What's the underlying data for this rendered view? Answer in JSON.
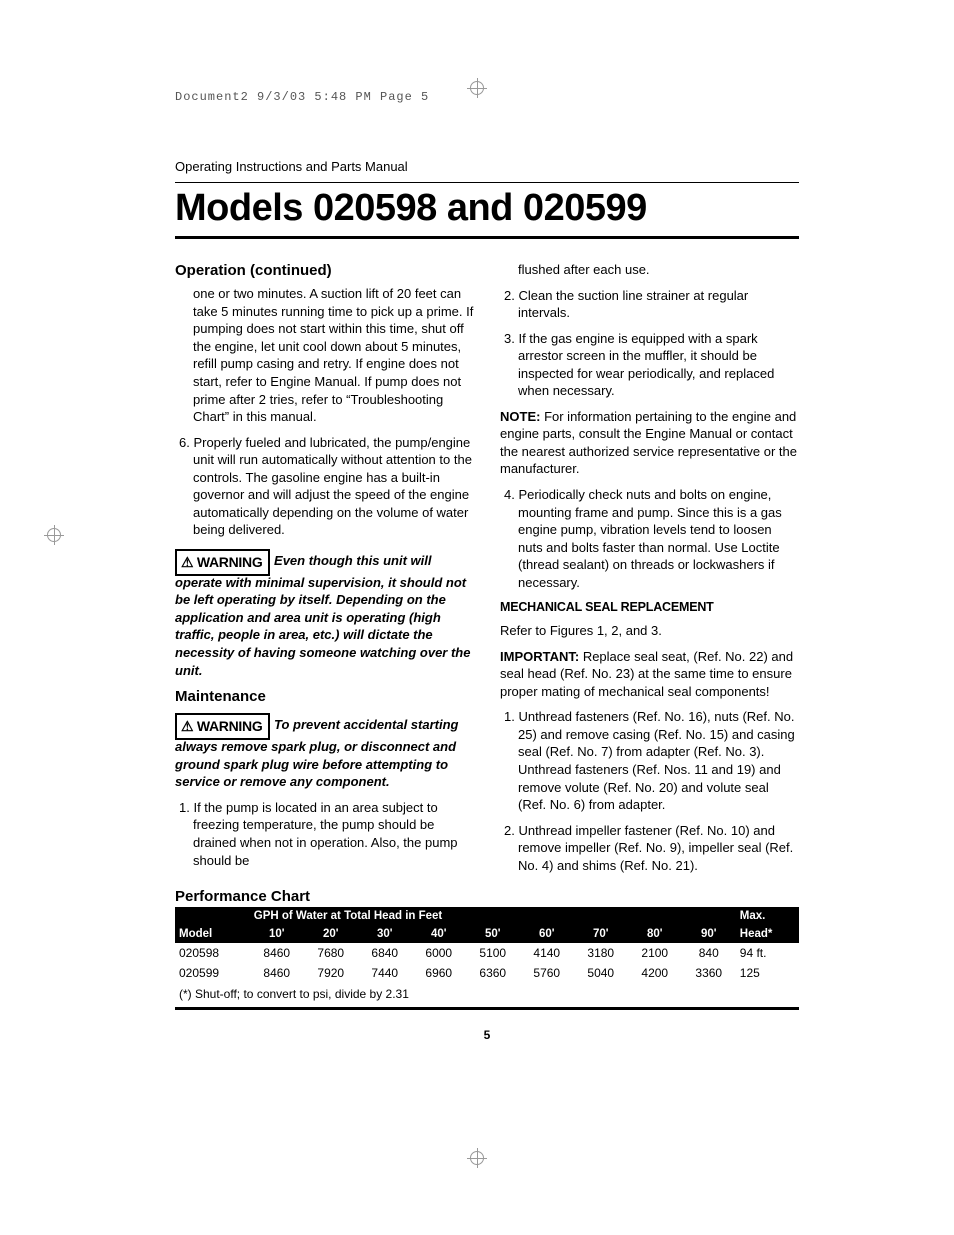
{
  "slug": "Document2  9/3/03  5:48 PM  Page 5",
  "running_head": "Operating Instructions and Parts Manual",
  "title": "Models 020598 and 020599",
  "left": {
    "sec1_head": "Operation (continued)",
    "p1": "one or two minutes. A suction lift of 20 feet can take 5 minutes running time to pick up a prime. If pumping does not start within this time, shut off the engine, let unit cool down about 5 minutes, refill pump casing and retry. If engine does not start, refer to Engine Manual. If pump does not prime after 2 tries, refer to “Troubleshooting Chart” in this manual.",
    "p2": "6. Properly fueled and lubricated, the pump/engine unit will run automatically without attention to the controls. The gasoline engine has a built-in governor and will adjust the speed of the engine automatically depending on the volume of water being delivered.",
    "warn1_label": "WARNING",
    "warn1_text": "Even though this unit will operate with minimal supervision, it should not be left operating by itself. Depending on the application and area unit is operating (high traffic, people in area, etc.) will dictate the necessity of having someone watching over the unit.",
    "sec2_head": "Maintenance",
    "warn2_label": "WARNING",
    "warn2_text": "To prevent accidental starting always remove spark plug, or disconnect and ground spark plug wire before attempting to service or remove any component.",
    "p3": "1. If the pump is located in an area subject to freezing temperature, the pump should be drained when not in operation. Also, the pump should be"
  },
  "right": {
    "p1": "flushed after each use.",
    "p2": "2. Clean the suction line strainer at regular intervals.",
    "p3": "3. If the gas engine is equipped with a spark arrestor screen in the muffler, it should be inspected for wear periodically, and replaced when necessary.",
    "note_label": "NOTE:",
    "note_text": " For information pertaining to the engine and engine parts, consult the Engine Manual or contact the nearest authorized service representative or the manufacturer.",
    "p4": "4. Periodically check nuts and bolts on engine, mounting frame and pump. Since this is a gas engine pump, vibration levels tend to loosen nuts and bolts faster than normal. Use Loctite (thread sealant) on threads or lockwashers if necessary.",
    "seal_head": "MECHANICAL SEAL REPLACEMENT",
    "p5": "Refer to Figures 1, 2, and 3.",
    "imp_label": "IMPORTANT:",
    "imp_text": " Replace seal seat, (Ref. No. 22) and seal head (Ref. No. 23) at the same time to ensure proper mating of mechanical seal components!",
    "p6": "1. Unthread fasteners (Ref. No. 16), nuts (Ref. No. 25) and remove casing (Ref. No. 15) and casing seal (Ref. No. 7) from adapter (Ref. No. 3). Unthread fasteners (Ref. Nos. 11 and 19) and remove volute (Ref. No. 20) and volute seal (Ref. No. 6) from adapter.",
    "p7": "2. Unthread impeller fastener (Ref. No. 10) and remove impeller (Ref. No. 9), impeller seal (Ref. No. 4) and shims (Ref. No. 21)."
  },
  "perf": {
    "head": "Performance Chart",
    "gph_label": "GPH of Water at Total Head in Feet",
    "max_label": "Max.",
    "cols": [
      "Model",
      "10'",
      "20'",
      "30'",
      "40'",
      "50'",
      "60'",
      "70'",
      "80'",
      "90'",
      "Head*"
    ],
    "rows": [
      [
        "020598",
        "8460",
        "7680",
        "6840",
        "6000",
        "5100",
        "4140",
        "3180",
        "2100",
        "840",
        "94 ft."
      ],
      [
        "020599",
        "8460",
        "7920",
        "7440",
        "6960",
        "6360",
        "5760",
        "5040",
        "4200",
        "3360",
        "125"
      ]
    ],
    "footnote": "(*) Shut-off; to convert to psi, divide by 2.31"
  },
  "page_number": "5"
}
